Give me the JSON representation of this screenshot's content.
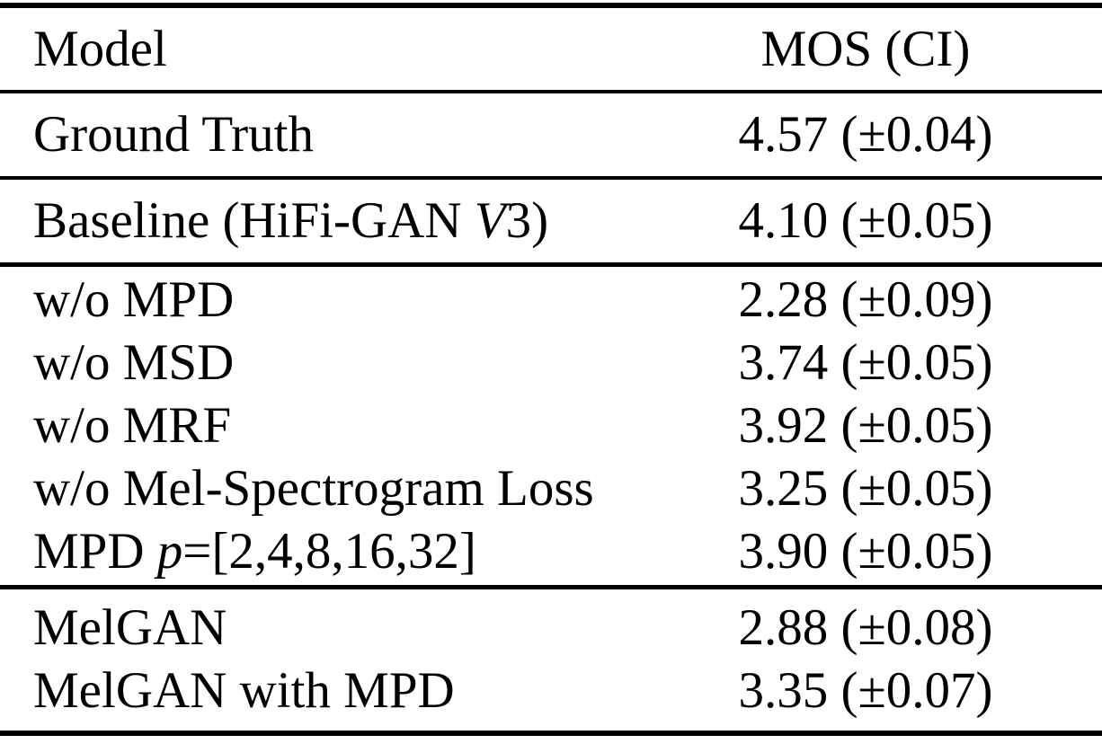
{
  "table": {
    "columns": {
      "model": "Model",
      "mos": "MOS (CI)"
    },
    "sections": [
      {
        "name": "ground-truth",
        "rows": [
          {
            "label_pre": "Ground Truth",
            "label_italic": "",
            "label_post": "",
            "value": "4.57 (±0.04)"
          }
        ]
      },
      {
        "name": "baseline",
        "rows": [
          {
            "label_pre": "Baseline (HiFi-GAN ",
            "label_italic": "V",
            "label_post": "3)",
            "value": "4.10 (±0.05)"
          }
        ]
      },
      {
        "name": "ablations",
        "rows": [
          {
            "label_pre": "w/o MPD",
            "label_italic": "",
            "label_post": "",
            "value": "2.28 (±0.09)"
          },
          {
            "label_pre": "w/o MSD",
            "label_italic": "",
            "label_post": "",
            "value": "3.74 (±0.05)"
          },
          {
            "label_pre": "w/o MRF",
            "label_italic": "",
            "label_post": "",
            "value": "3.92 (±0.05)"
          },
          {
            "label_pre": "w/o Mel-Spectrogram Loss",
            "label_italic": "",
            "label_post": "",
            "value": "3.25 (±0.05)"
          },
          {
            "label_pre": "MPD ",
            "label_italic": "p",
            "label_post": "=[2,4,8,16,32]",
            "value": "3.90 (±0.05)"
          }
        ]
      },
      {
        "name": "melgan",
        "rows": [
          {
            "label_pre": "MelGAN",
            "label_italic": "",
            "label_post": "",
            "value": "2.88 (±0.08)"
          },
          {
            "label_pre": "MelGAN with MPD",
            "label_italic": "",
            "label_post": "",
            "value": "3.35 (±0.07)"
          }
        ]
      }
    ]
  }
}
